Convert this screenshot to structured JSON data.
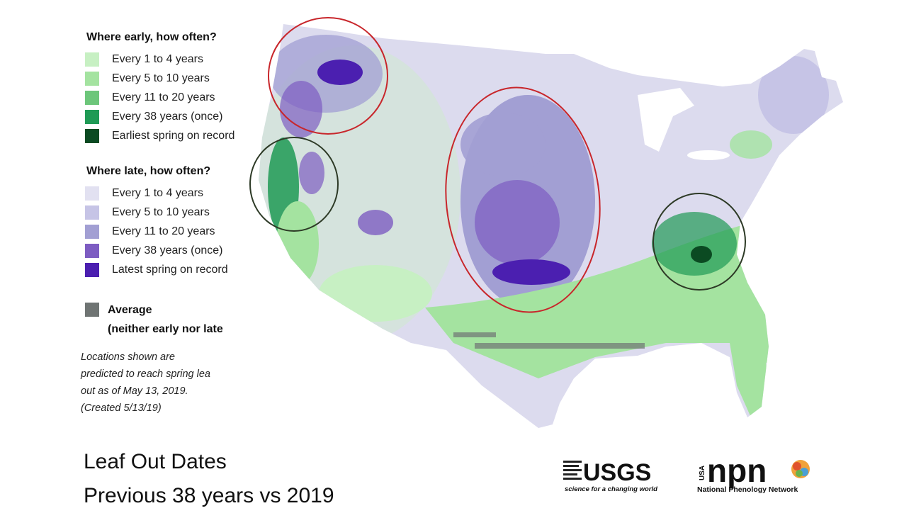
{
  "legend": {
    "early_heading": "Where early, how often?",
    "early_items": [
      {
        "label": "Every 1 to 4 years",
        "color": "#c7f0c3"
      },
      {
        "label": "Every 5 to 10 years",
        "color": "#a4e3a0"
      },
      {
        "label": "Every 11 to 20 years",
        "color": "#6cc67a"
      },
      {
        "label": "Every 38 years (once)",
        "color": "#1f9a55"
      },
      {
        "label": "Earliest spring on record",
        "color": "#0b4a22"
      }
    ],
    "late_heading": "Where late, how often?",
    "late_items": [
      {
        "label": "Every 1 to 4 years",
        "color": "#e2e1f1"
      },
      {
        "label": "Every 5 to 10 years",
        "color": "#c6c4e6"
      },
      {
        "label": "Every 11 to 20 years",
        "color": "#a29fd3"
      },
      {
        "label": "Every 38 years (once)",
        "color": "#7d5cc2"
      },
      {
        "label": "Latest spring on record",
        "color": "#4b1fb0"
      }
    ],
    "average_label_line1": "Average",
    "average_label_line2": "(neither early nor late",
    "average_color": "#6f7473"
  },
  "note": {
    "line1": "Locations shown are",
    "line2": "predicted to reach spring lea",
    "line3": "out as of May 13, 2019.",
    "line4": "(Created 5/13/19)"
  },
  "caption": {
    "line1": "Leaf Out Dates",
    "line2": "Previous 38 years vs 2019"
  },
  "logos": {
    "usgs_name": "USGS",
    "usgs_tagline": "science for a changing world",
    "npn_name": "npn",
    "npn_prefix": "USA",
    "npn_tagline": "National Phenology Network"
  },
  "annotation_colors": {
    "red": "#c8262b",
    "dark_green": "#2d3a26"
  }
}
